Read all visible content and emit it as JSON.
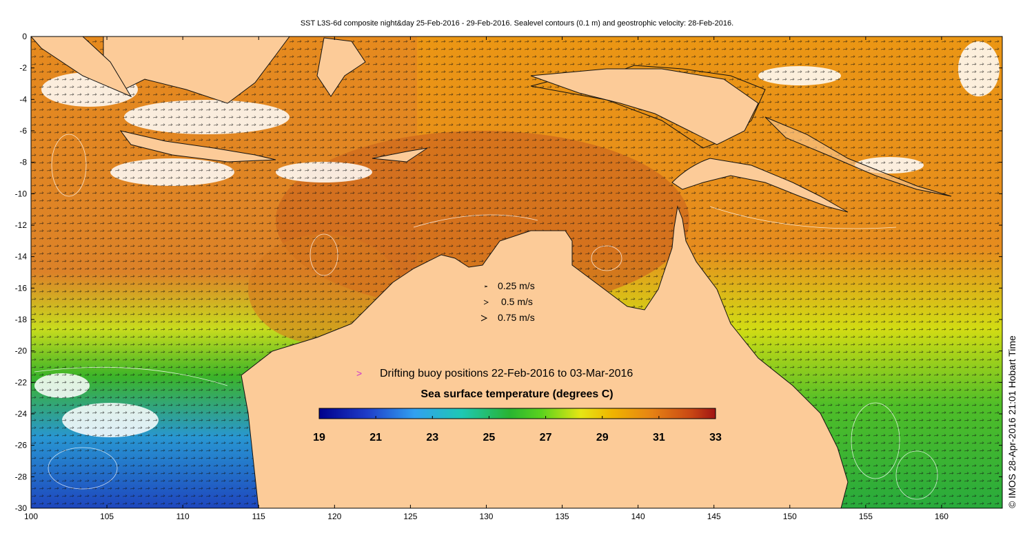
{
  "title": "SST L3S-6d composite night&day 25-Feb-2016 - 29-Feb-2016. Sealevel contours (0.1 m) and geostrophic velocity: 28-Feb-2016.",
  "credit": "© IMOS 28-Apr-2016 21:01 Hobart Time",
  "axes": {
    "x_ticks": [
      "100",
      "105",
      "110",
      "115",
      "120",
      "125",
      "130",
      "135",
      "140",
      "145",
      "150",
      "155",
      "160"
    ],
    "y_ticks": [
      "0",
      "-2",
      "-4",
      "-6",
      "-8",
      "-10",
      "-12",
      "-14",
      "-16",
      "-18",
      "-20",
      "-22",
      "-24",
      "-26",
      "-28",
      "-30"
    ],
    "xlim": [
      100,
      164
    ],
    "ylim": [
      -30,
      0
    ]
  },
  "velocity_legend": {
    "items": [
      "0.25 m/s",
      "0.5 m/s",
      "0.75 m/s"
    ],
    "values": [
      0.25,
      0.5,
      0.75
    ]
  },
  "buoy_legend": {
    "symbol": ">",
    "label": "Drifting buoy positions 22-Feb-2016 to 03-Mar-2016",
    "symbol_color": "#cc33cc"
  },
  "colorbar": {
    "title": "Sea surface temperature (degrees C)",
    "tick_labels": [
      "19",
      "21",
      "23",
      "25",
      "27",
      "29",
      "31",
      "33"
    ],
    "min": 19,
    "max": 33
  },
  "colors": {
    "land": "#fccb98",
    "sst_warm": "#d2691e",
    "sst_cool": "#1e50c8",
    "contour": "#ffffff",
    "buoy": "#cc33cc"
  }
}
